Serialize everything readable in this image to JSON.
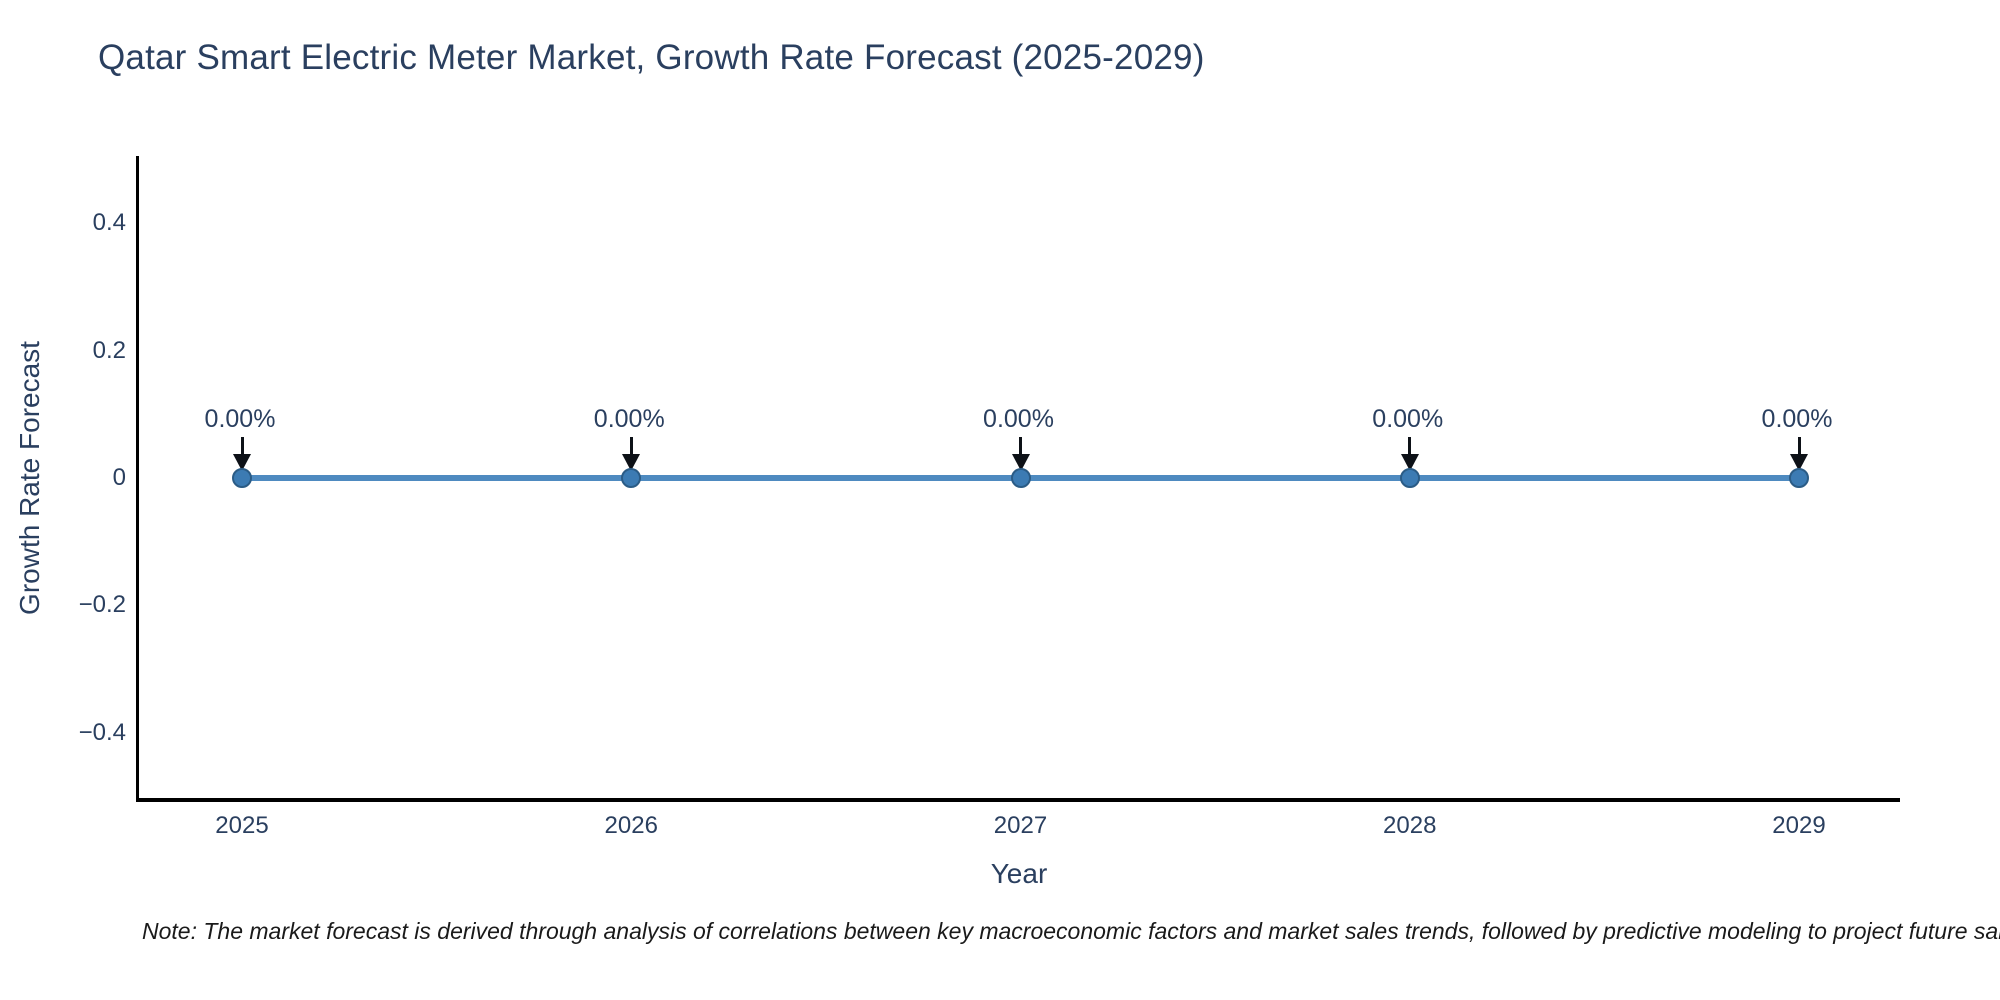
{
  "page": {
    "background": "#ffffff"
  },
  "chart_data": {
    "type": "line",
    "title": "Qatar Smart Electric Meter Market, Growth Rate Forecast (2025-2029)",
    "xlabel": "Year",
    "ylabel": "Growth Rate Forecast",
    "x": [
      "2025",
      "2026",
      "2027",
      "2028",
      "2029"
    ],
    "series": [
      {
        "name": "Growth Rate Forecast",
        "values": [
          0,
          0,
          0,
          0,
          0
        ]
      }
    ],
    "point_labels": [
      "0.00%",
      "0.00%",
      "0.00%",
      "0.00%",
      "0.00%"
    ],
    "annotation_arrow_direction": "down",
    "yticks": [
      0.4,
      0.2,
      0,
      -0.2,
      -0.4
    ],
    "ytick_labels": [
      "0.4",
      "0.2",
      "0",
      "−0.2",
      "−0.4"
    ],
    "ylim": [
      -0.5,
      0.5
    ],
    "grid": false,
    "legend": false,
    "colors": {
      "line": "#4e8ac0",
      "marker": "#3c7bb3",
      "marker_edge": "#2b5c86",
      "axis": "#000000",
      "text": "#2a3f5f",
      "arrow": "#0d1117",
      "note": "#1a1a1a"
    }
  },
  "note": {
    "text": "Note: The market forecast is derived through analysis of correlations between key macroeconomic factors and market sales trends, followed by predictive modeling to project future sal"
  }
}
